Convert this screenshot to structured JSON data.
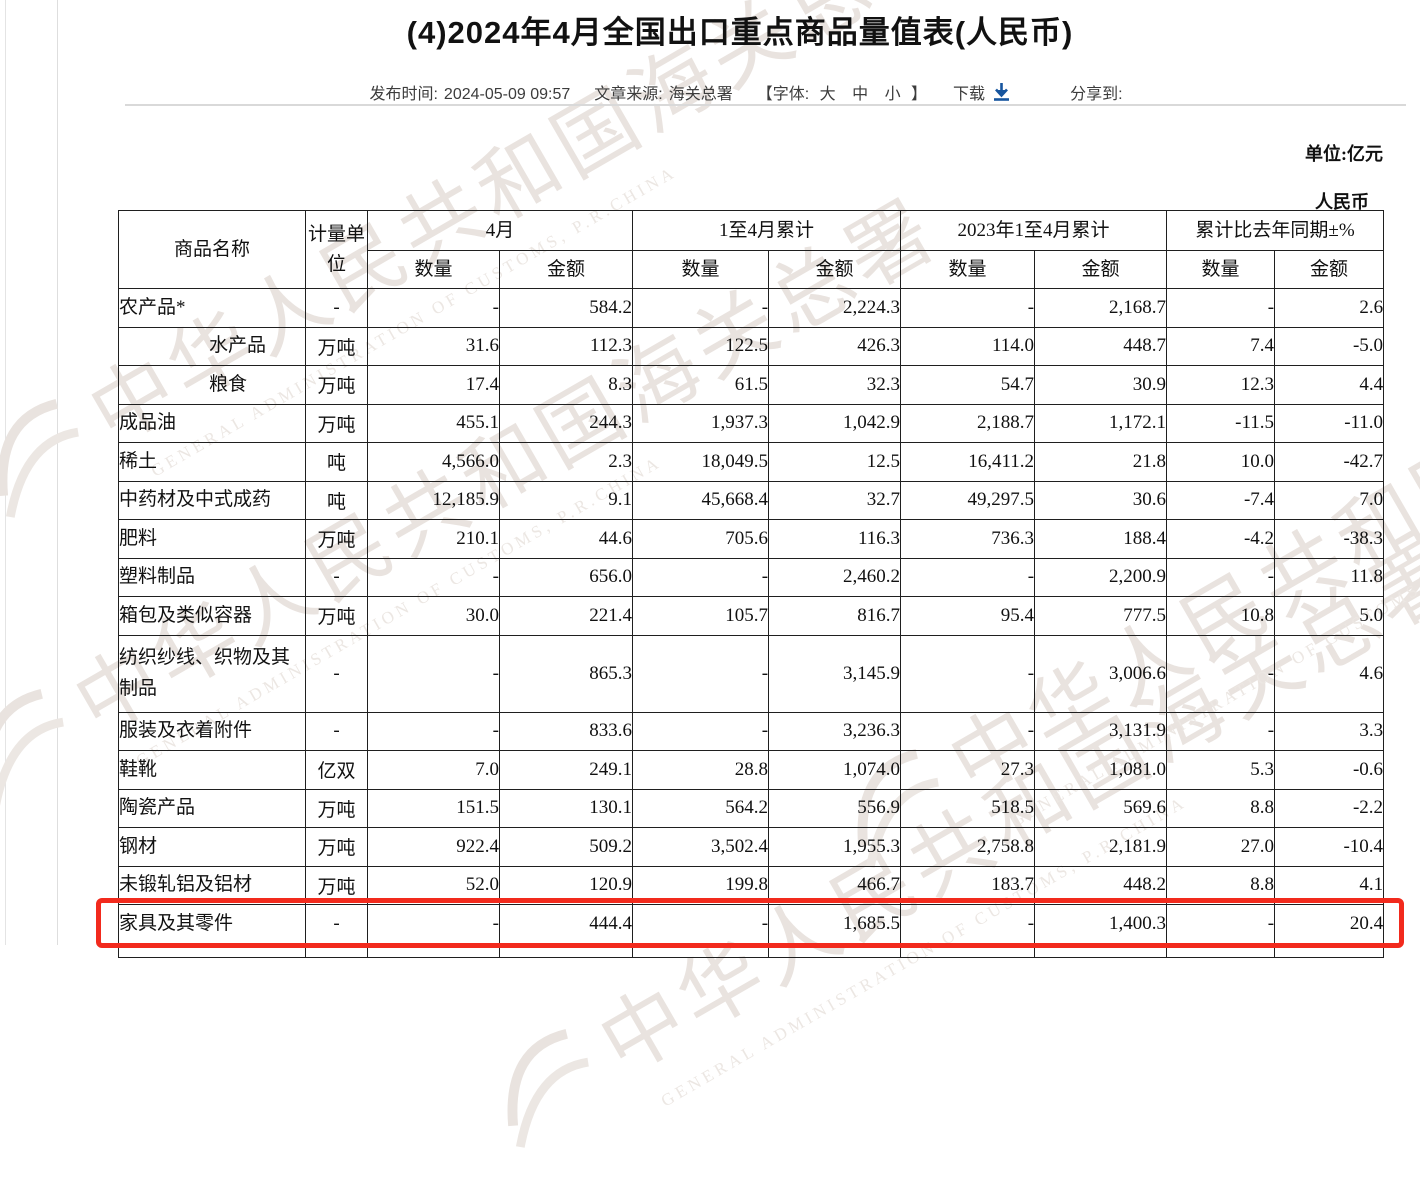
{
  "title": "(4)2024年4月全国出口重点商品量值表(人民币)",
  "meta": {
    "publish_label": "发布时间:",
    "publish_value": "2024-05-09 09:57",
    "source_label": "文章来源:",
    "source_value": "海关总署",
    "font_prefix": "【字体:",
    "font_large": "大",
    "font_medium": "中",
    "font_small": "小",
    "font_suffix": "】",
    "download_label": "下载",
    "share_label": "分享到:"
  },
  "unit_note": {
    "line1": "单位:亿元",
    "line2": "人民币"
  },
  "table": {
    "header": {
      "commodity": "商品名称",
      "unit": "计量单位",
      "groups": [
        "4月",
        "1至4月累计",
        "2023年1至4月累计",
        "累计比去年同期±%"
      ],
      "sub": [
        "数量",
        "金额"
      ]
    },
    "rows": [
      {
        "name": "农产品*",
        "indent": false,
        "unit": "-",
        "values": [
          "-",
          "584.2",
          "-",
          "2,224.3",
          "-",
          "2,168.7",
          "-",
          "2.6"
        ]
      },
      {
        "name": "水产品",
        "indent": true,
        "unit": "万吨",
        "values": [
          "31.6",
          "112.3",
          "122.5",
          "426.3",
          "114.0",
          "448.7",
          "7.4",
          "-5.0"
        ]
      },
      {
        "name": "粮食",
        "indent": true,
        "unit": "万吨",
        "values": [
          "17.4",
          "8.3",
          "61.5",
          "32.3",
          "54.7",
          "30.9",
          "12.3",
          "4.4"
        ]
      },
      {
        "name": "成品油",
        "indent": false,
        "unit": "万吨",
        "values": [
          "455.1",
          "244.3",
          "1,937.3",
          "1,042.9",
          "2,188.7",
          "1,172.1",
          "-11.5",
          "-11.0"
        ]
      },
      {
        "name": "稀土",
        "indent": false,
        "unit": "吨",
        "values": [
          "4,566.0",
          "2.3",
          "18,049.5",
          "12.5",
          "16,411.2",
          "21.8",
          "10.0",
          "-42.7"
        ]
      },
      {
        "name": "中药材及中式成药",
        "indent": false,
        "unit": "吨",
        "values": [
          "12,185.9",
          "9.1",
          "45,668.4",
          "32.7",
          "49,297.5",
          "30.6",
          "-7.4",
          "7.0"
        ]
      },
      {
        "name": "肥料",
        "indent": false,
        "unit": "万吨",
        "values": [
          "210.1",
          "44.6",
          "705.6",
          "116.3",
          "736.3",
          "188.4",
          "-4.2",
          "-38.3"
        ]
      },
      {
        "name": "塑料制品",
        "indent": false,
        "unit": "-",
        "values": [
          "-",
          "656.0",
          "-",
          "2,460.2",
          "-",
          "2,200.9",
          "-",
          "11.8"
        ]
      },
      {
        "name": "箱包及类似容器",
        "indent": false,
        "unit": "万吨",
        "values": [
          "30.0",
          "221.4",
          "105.7",
          "816.7",
          "95.4",
          "777.5",
          "10.8",
          "5.0"
        ]
      },
      {
        "name": "纺织纱线、织物及其制品",
        "indent": false,
        "unit": "-",
        "tall": true,
        "values": [
          "-",
          "865.3",
          "-",
          "3,145.9",
          "-",
          "3,006.6",
          "-",
          "4.6"
        ]
      },
      {
        "name": "服装及衣着附件",
        "indent": false,
        "unit": "-",
        "values": [
          "-",
          "833.6",
          "-",
          "3,236.3",
          "-",
          "3,131.9",
          "-",
          "3.3"
        ]
      },
      {
        "name": "鞋靴",
        "indent": false,
        "unit": "亿双",
        "values": [
          "7.0",
          "249.1",
          "28.8",
          "1,074.0",
          "27.3",
          "1,081.0",
          "5.3",
          "-0.6"
        ]
      },
      {
        "name": "陶瓷产品",
        "indent": false,
        "unit": "万吨",
        "values": [
          "151.5",
          "130.1",
          "564.2",
          "556.9",
          "518.5",
          "569.6",
          "8.8",
          "-2.2"
        ]
      },
      {
        "name": "钢材",
        "indent": false,
        "unit": "万吨",
        "values": [
          "922.4",
          "509.2",
          "3,502.4",
          "1,955.3",
          "2,758.8",
          "2,181.9",
          "27.0",
          "-10.4"
        ]
      },
      {
        "name": "未锻轧铝及铝材",
        "indent": false,
        "unit": "万吨",
        "values": [
          "52.0",
          "120.9",
          "199.8",
          "466.7",
          "183.7",
          "448.2",
          "8.8",
          "4.1"
        ]
      },
      {
        "name": "家具及其零件",
        "indent": false,
        "unit": "-",
        "highlighted": true,
        "values": [
          "-",
          "444.4",
          "-",
          "1,685.5",
          "-",
          "1,400.3",
          "-",
          "20.4"
        ]
      }
    ]
  },
  "watermark": {
    "cn": "中华人民共和国海关总署",
    "en": "GENERAL ADMINISTRATION OF CUSTOMS, P.R.CHINA"
  },
  "highlight": {
    "row": "家具及其零件",
    "color": "#f22a1d"
  },
  "colors": {
    "download_icon": "#17559e",
    "table_border": "#1f1f1f",
    "accent_red": "#f22a1d"
  }
}
